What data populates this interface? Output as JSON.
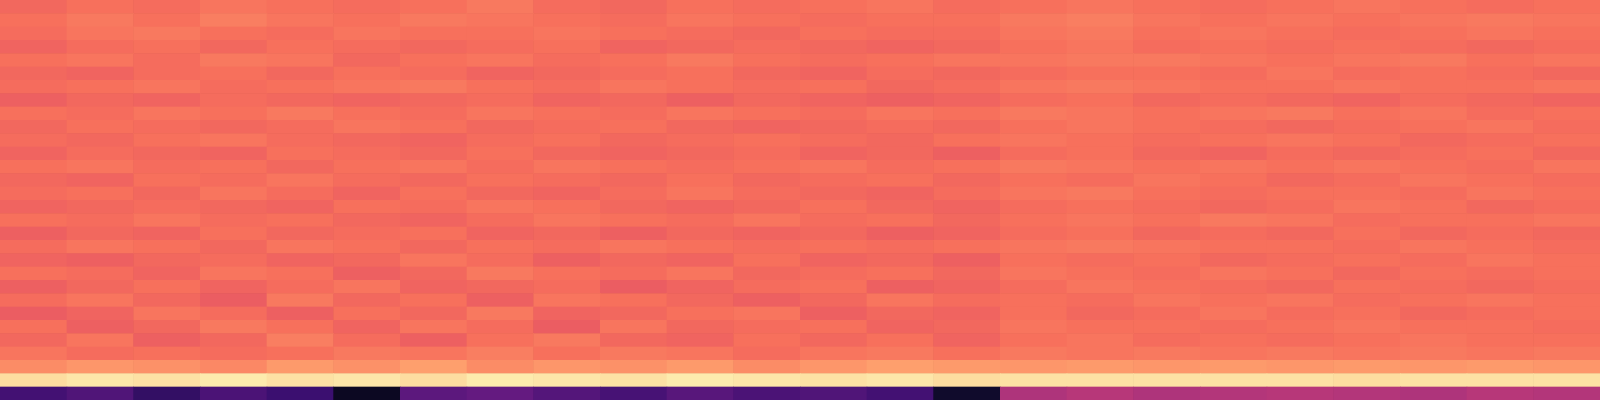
{
  "chart_data": {
    "type": "heatmap",
    "tick_labels": false,
    "color": "magma",
    "zlim": [
      0,
      100
    ],
    "z": [
      [
        68,
        70,
        69,
        71,
        70,
        69,
        70,
        72,
        69,
        68,
        70,
        69,
        70,
        71,
        69,
        70,
        71,
        70,
        69,
        70,
        71,
        70,
        69,
        70
      ],
      [
        70,
        72,
        70,
        73,
        71,
        70,
        72,
        71,
        70,
        69,
        71,
        70,
        69,
        70,
        70,
        72,
        73,
        71,
        70,
        71,
        70,
        71,
        72,
        71
      ],
      [
        69,
        71,
        72,
        70,
        69,
        71,
        70,
        70,
        71,
        70,
        69,
        68,
        70,
        69,
        69,
        71,
        72,
        70,
        71,
        70,
        69,
        70,
        71,
        70
      ],
      [
        67,
        69,
        70,
        68,
        70,
        69,
        68,
        69,
        70,
        67,
        68,
        69,
        68,
        67,
        68,
        70,
        71,
        69,
        70,
        69,
        70,
        69,
        68,
        69
      ],
      [
        70,
        71,
        69,
        72,
        71,
        68,
        70,
        71,
        69,
        70,
        72,
        70,
        69,
        70,
        71,
        71,
        72,
        72,
        71,
        70,
        71,
        72,
        70,
        71
      ],
      [
        68,
        67,
        69,
        70,
        68,
        70,
        69,
        67,
        68,
        69,
        70,
        68,
        67,
        69,
        68,
        69,
        70,
        70,
        69,
        71,
        69,
        70,
        69,
        68
      ],
      [
        69,
        70,
        71,
        69,
        70,
        71,
        72,
        70,
        69,
        71,
        70,
        69,
        70,
        68,
        69,
        71,
        72,
        71,
        70,
        70,
        71,
        70,
        70,
        71
      ],
      [
        66,
        68,
        67,
        69,
        68,
        67,
        68,
        69,
        67,
        68,
        66,
        68,
        67,
        66,
        67,
        69,
        70,
        68,
        69,
        68,
        67,
        69,
        68,
        67
      ],
      [
        70,
        69,
        71,
        70,
        72,
        70,
        69,
        71,
        70,
        69,
        71,
        70,
        69,
        71,
        70,
        72,
        71,
        70,
        71,
        72,
        70,
        71,
        69,
        70
      ],
      [
        68,
        70,
        69,
        68,
        69,
        71,
        70,
        68,
        69,
        70,
        68,
        67,
        68,
        69,
        68,
        70,
        71,
        70,
        69,
        68,
        69,
        70,
        71,
        69
      ],
      [
        69,
        68,
        70,
        71,
        69,
        68,
        67,
        69,
        70,
        68,
        69,
        70,
        69,
        68,
        70,
        71,
        70,
        69,
        70,
        71,
        70,
        68,
        69,
        70
      ],
      [
        67,
        69,
        68,
        67,
        70,
        69,
        68,
        70,
        68,
        67,
        68,
        69,
        67,
        68,
        66,
        69,
        70,
        68,
        67,
        69,
        68,
        69,
        70,
        68
      ],
      [
        70,
        71,
        69,
        70,
        68,
        70,
        71,
        69,
        71,
        70,
        69,
        70,
        71,
        69,
        70,
        72,
        71,
        70,
        71,
        70,
        71,
        70,
        69,
        71
      ],
      [
        68,
        67,
        70,
        69,
        71,
        69,
        68,
        70,
        69,
        68,
        70,
        68,
        69,
        70,
        68,
        70,
        69,
        71,
        70,
        68,
        69,
        71,
        70,
        69
      ],
      [
        69,
        70,
        68,
        71,
        69,
        67,
        70,
        68,
        67,
        69,
        71,
        69,
        68,
        67,
        69,
        71,
        72,
        70,
        69,
        70,
        70,
        69,
        71,
        70
      ],
      [
        67,
        68,
        69,
        68,
        67,
        70,
        69,
        71,
        70,
        68,
        67,
        68,
        70,
        68,
        67,
        69,
        70,
        69,
        68,
        69,
        71,
        70,
        68,
        69
      ],
      [
        70,
        69,
        71,
        69,
        70,
        68,
        67,
        69,
        71,
        70,
        69,
        71,
        69,
        70,
        68,
        70,
        71,
        70,
        72,
        71,
        69,
        70,
        70,
        71
      ],
      [
        66,
        68,
        67,
        70,
        68,
        69,
        70,
        67,
        68,
        66,
        68,
        67,
        68,
        66,
        67,
        69,
        70,
        68,
        69,
        68,
        70,
        68,
        69,
        68
      ],
      [
        69,
        71,
        70,
        68,
        71,
        70,
        68,
        70,
        69,
        71,
        70,
        69,
        70,
        69,
        70,
        71,
        72,
        71,
        70,
        70,
        69,
        71,
        70,
        69
      ],
      [
        67,
        66,
        68,
        69,
        67,
        68,
        71,
        69,
        66,
        68,
        67,
        70,
        67,
        68,
        66,
        70,
        69,
        70,
        68,
        69,
        70,
        69,
        71,
        70
      ],
      [
        70,
        69,
        67,
        71,
        70,
        66,
        68,
        72,
        70,
        69,
        71,
        68,
        69,
        70,
        68,
        71,
        70,
        69,
        71,
        70,
        68,
        70,
        69,
        70
      ],
      [
        66,
        68,
        70,
        67,
        69,
        71,
        67,
        68,
        69,
        65,
        67,
        69,
        70,
        66,
        67,
        69,
        71,
        70,
        69,
        68,
        70,
        69,
        68,
        69
      ],
      [
        69,
        71,
        68,
        65,
        72,
        68,
        70,
        66,
        71,
        70,
        68,
        66,
        68,
        71,
        69,
        70,
        69,
        71,
        70,
        71,
        69,
        70,
        71,
        70
      ],
      [
        65,
        67,
        71,
        69,
        66,
        70,
        68,
        72,
        67,
        68,
        70,
        71,
        66,
        68,
        67,
        70,
        68,
        69,
        71,
        69,
        70,
        68,
        69,
        70
      ],
      [
        70,
        66,
        68,
        72,
        70,
        67,
        71,
        69,
        65,
        71,
        68,
        69,
        70,
        67,
        68,
        71,
        70,
        70,
        69,
        70,
        71,
        70,
        70,
        69
      ],
      [
        68,
        71,
        66,
        68,
        73,
        69,
        66,
        70,
        72,
        68,
        67,
        70,
        68,
        70,
        67,
        70,
        71,
        69,
        70,
        69,
        70,
        71,
        70,
        70
      ],
      [
        71,
        69,
        70,
        69,
        70,
        72,
        71,
        73,
        70,
        72,
        71,
        69,
        71,
        72,
        70,
        72,
        71,
        72,
        71,
        72,
        71,
        72,
        71,
        72
      ],
      [
        76,
        78,
        77,
        75,
        79,
        77,
        80,
        76,
        78,
        77,
        79,
        76,
        78,
        80,
        79,
        78,
        79,
        78,
        79,
        78,
        79,
        78,
        79,
        78
      ],
      [
        93,
        95,
        94,
        96,
        94,
        95,
        93,
        96,
        95,
        94,
        96,
        95,
        94,
        95,
        93,
        94,
        94,
        94,
        94,
        94,
        93,
        94,
        94,
        94
      ],
      [
        22,
        25,
        18,
        24,
        20,
        6,
        28,
        30,
        26,
        23,
        27,
        24,
        25,
        22,
        8,
        48,
        50,
        48,
        49,
        50,
        49,
        48,
        50,
        49
      ]
    ]
  }
}
